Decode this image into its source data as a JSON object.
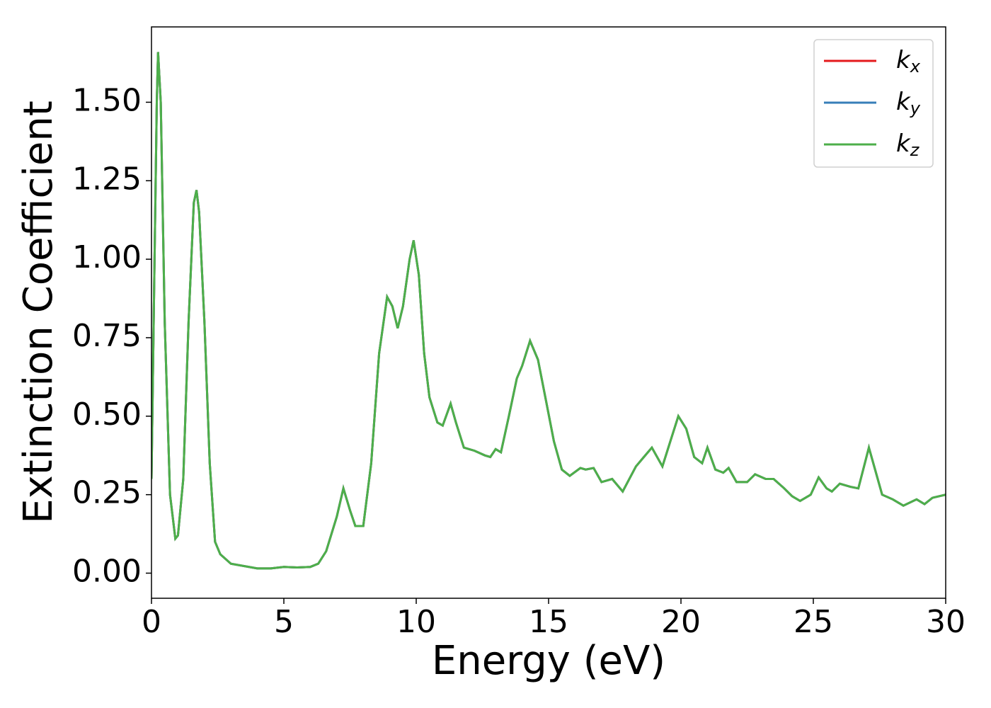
{
  "chart_data": {
    "type": "line",
    "xlabel": "Energy (eV)",
    "ylabel": "Extinction Coefficient",
    "xlim": [
      0,
      30
    ],
    "ylim": [
      -0.08,
      1.74
    ],
    "xticks": [
      0,
      5,
      10,
      15,
      20,
      25,
      30
    ],
    "yticks": [
      {
        "value": 0,
        "label": "0.00"
      },
      {
        "value": 0.25,
        "label": "0.25"
      },
      {
        "value": 0.5,
        "label": "0.50"
      },
      {
        "value": 0.75,
        "label": "0.75"
      },
      {
        "value": 1,
        "label": "1.00"
      },
      {
        "value": 1.25,
        "label": "1.25"
      },
      {
        "value": 1.5,
        "label": "1.50"
      }
    ],
    "legend": "upper right",
    "x": [
      0,
      0.1,
      0.2,
      0.25,
      0.35,
      0.5,
      0.7,
      0.9,
      1.0,
      1.2,
      1.4,
      1.6,
      1.7,
      1.8,
      2.0,
      2.2,
      2.4,
      2.6,
      3.0,
      4.0,
      4.5,
      5.0,
      5.5,
      6.0,
      6.3,
      6.6,
      7.0,
      7.25,
      7.5,
      7.7,
      8.0,
      8.3,
      8.6,
      8.9,
      9.1,
      9.3,
      9.5,
      9.75,
      9.9,
      10.1,
      10.3,
      10.5,
      10.8,
      11.0,
      11.3,
      11.5,
      11.8,
      12.2,
      12.6,
      12.8,
      13.0,
      13.2,
      13.5,
      13.8,
      14.0,
      14.3,
      14.6,
      14.9,
      15.2,
      15.5,
      15.8,
      16.2,
      16.4,
      16.7,
      17.0,
      17.4,
      17.8,
      18.3,
      18.6,
      18.9,
      19.3,
      19.6,
      19.9,
      20.2,
      20.5,
      20.8,
      21.0,
      21.3,
      21.6,
      21.8,
      22.1,
      22.5,
      22.8,
      23.2,
      23.5,
      23.9,
      24.2,
      24.5,
      24.9,
      25.2,
      25.5,
      25.7,
      26.0,
      26.4,
      26.7,
      27.1,
      27.3,
      27.6,
      28.0,
      28.4,
      28.9,
      29.2,
      29.5,
      30
    ],
    "series": [
      {
        "name": "kx",
        "color": "#e41a1c",
        "values": [
          0.3,
          0.9,
          1.5,
          1.66,
          1.5,
          0.8,
          0.25,
          0.11,
          0.12,
          0.3,
          0.8,
          1.18,
          1.22,
          1.15,
          0.8,
          0.35,
          0.1,
          0.06,
          0.03,
          0.015,
          0.015,
          0.02,
          0.018,
          0.02,
          0.03,
          0.07,
          0.18,
          0.27,
          0.2,
          0.15,
          0.15,
          0.35,
          0.7,
          0.88,
          0.85,
          0.78,
          0.85,
          1.0,
          1.06,
          0.95,
          0.7,
          0.56,
          0.48,
          0.47,
          0.54,
          0.48,
          0.4,
          0.39,
          0.375,
          0.37,
          0.395,
          0.385,
          0.5,
          0.62,
          0.66,
          0.74,
          0.68,
          0.55,
          0.42,
          0.33,
          0.31,
          0.335,
          0.33,
          0.335,
          0.29,
          0.3,
          0.26,
          0.34,
          0.37,
          0.4,
          0.34,
          0.42,
          0.5,
          0.46,
          0.37,
          0.35,
          0.4,
          0.33,
          0.32,
          0.335,
          0.29,
          0.29,
          0.315,
          0.3,
          0.3,
          0.27,
          0.245,
          0.23,
          0.25,
          0.305,
          0.27,
          0.26,
          0.285,
          0.275,
          0.27,
          0.4,
          0.34,
          0.25,
          0.235,
          0.215,
          0.235,
          0.22,
          0.24,
          0.25
        ]
      },
      {
        "name": "ky",
        "color": "#377eb8",
        "values": [
          0.3,
          0.9,
          1.5,
          1.66,
          1.5,
          0.8,
          0.25,
          0.11,
          0.12,
          0.3,
          0.8,
          1.18,
          1.22,
          1.15,
          0.8,
          0.35,
          0.1,
          0.06,
          0.03,
          0.015,
          0.015,
          0.02,
          0.018,
          0.02,
          0.03,
          0.07,
          0.18,
          0.27,
          0.2,
          0.15,
          0.15,
          0.35,
          0.7,
          0.88,
          0.85,
          0.78,
          0.85,
          1.0,
          1.06,
          0.95,
          0.7,
          0.56,
          0.48,
          0.47,
          0.54,
          0.48,
          0.4,
          0.39,
          0.375,
          0.37,
          0.395,
          0.385,
          0.5,
          0.62,
          0.66,
          0.74,
          0.68,
          0.55,
          0.42,
          0.33,
          0.31,
          0.335,
          0.33,
          0.335,
          0.29,
          0.3,
          0.26,
          0.34,
          0.37,
          0.4,
          0.34,
          0.42,
          0.5,
          0.46,
          0.37,
          0.35,
          0.4,
          0.33,
          0.32,
          0.335,
          0.29,
          0.29,
          0.315,
          0.3,
          0.3,
          0.27,
          0.245,
          0.23,
          0.25,
          0.305,
          0.27,
          0.26,
          0.285,
          0.275,
          0.27,
          0.4,
          0.34,
          0.25,
          0.235,
          0.215,
          0.235,
          0.22,
          0.24,
          0.25
        ]
      },
      {
        "name": "kz",
        "color": "#4daf4a",
        "values": [
          0.3,
          0.9,
          1.5,
          1.66,
          1.5,
          0.8,
          0.25,
          0.11,
          0.12,
          0.3,
          0.8,
          1.18,
          1.22,
          1.15,
          0.8,
          0.35,
          0.1,
          0.06,
          0.03,
          0.015,
          0.015,
          0.02,
          0.018,
          0.02,
          0.03,
          0.07,
          0.18,
          0.27,
          0.2,
          0.15,
          0.15,
          0.35,
          0.7,
          0.88,
          0.85,
          0.78,
          0.85,
          1.0,
          1.06,
          0.95,
          0.7,
          0.56,
          0.48,
          0.47,
          0.54,
          0.48,
          0.4,
          0.39,
          0.375,
          0.37,
          0.395,
          0.385,
          0.5,
          0.62,
          0.66,
          0.74,
          0.68,
          0.55,
          0.42,
          0.33,
          0.31,
          0.335,
          0.33,
          0.335,
          0.29,
          0.3,
          0.26,
          0.34,
          0.37,
          0.4,
          0.34,
          0.42,
          0.5,
          0.46,
          0.37,
          0.35,
          0.4,
          0.33,
          0.32,
          0.335,
          0.29,
          0.29,
          0.315,
          0.3,
          0.3,
          0.27,
          0.245,
          0.23,
          0.25,
          0.305,
          0.27,
          0.26,
          0.285,
          0.275,
          0.27,
          0.4,
          0.34,
          0.25,
          0.235,
          0.215,
          0.235,
          0.22,
          0.24,
          0.25
        ]
      }
    ]
  }
}
